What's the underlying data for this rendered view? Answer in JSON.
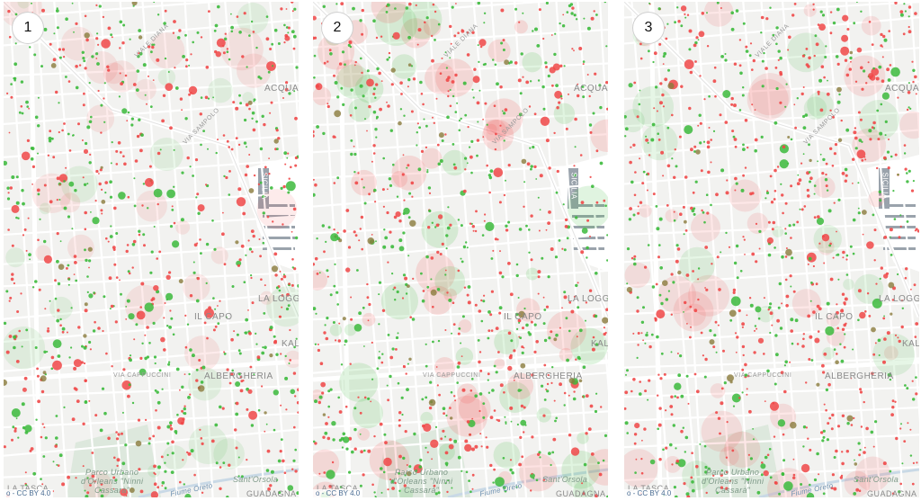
{
  "panels": [
    {
      "number": "1",
      "seed": 11,
      "green_ratio": 0.48,
      "halo": 0.35
    },
    {
      "number": "2",
      "seed": 23,
      "green_ratio": 0.5,
      "halo": 0.9
    },
    {
      "number": "3",
      "seed": 37,
      "green_ratio": 0.38,
      "halo": 0.55
    }
  ],
  "labels": {
    "il_capo": "IL CAPO",
    "albergheria": "ALBERGHERIA",
    "la_loggia": "LA LOGGIA",
    "kalsa": "KALSA",
    "acquasanta": "ACQUASA",
    "sicilia": "SICILIA",
    "via_cappuccini": "VIA CAPPUCCINI",
    "via_sampolo": "VIA SAMPOLO",
    "viale_diana": "VIALE DIANA",
    "park_line1": "Parco Urbano",
    "park_line2": "d'Orleans \"Ninni",
    "park_line3": "Cassarà\"",
    "fiume_oreto": "Fiume Oreto",
    "sant_orsola": "Sant'Orsola",
    "guadagna": "GUADAGNA",
    "la_tasca": "LA TASCA",
    "attribution": "o - CC BY 4.0"
  },
  "colors": {
    "green": "#3cba3c",
    "red": "#f04848",
    "olive": "#8a7a3c",
    "sea": "#9aa3ac",
    "park": "#dde8dd"
  }
}
